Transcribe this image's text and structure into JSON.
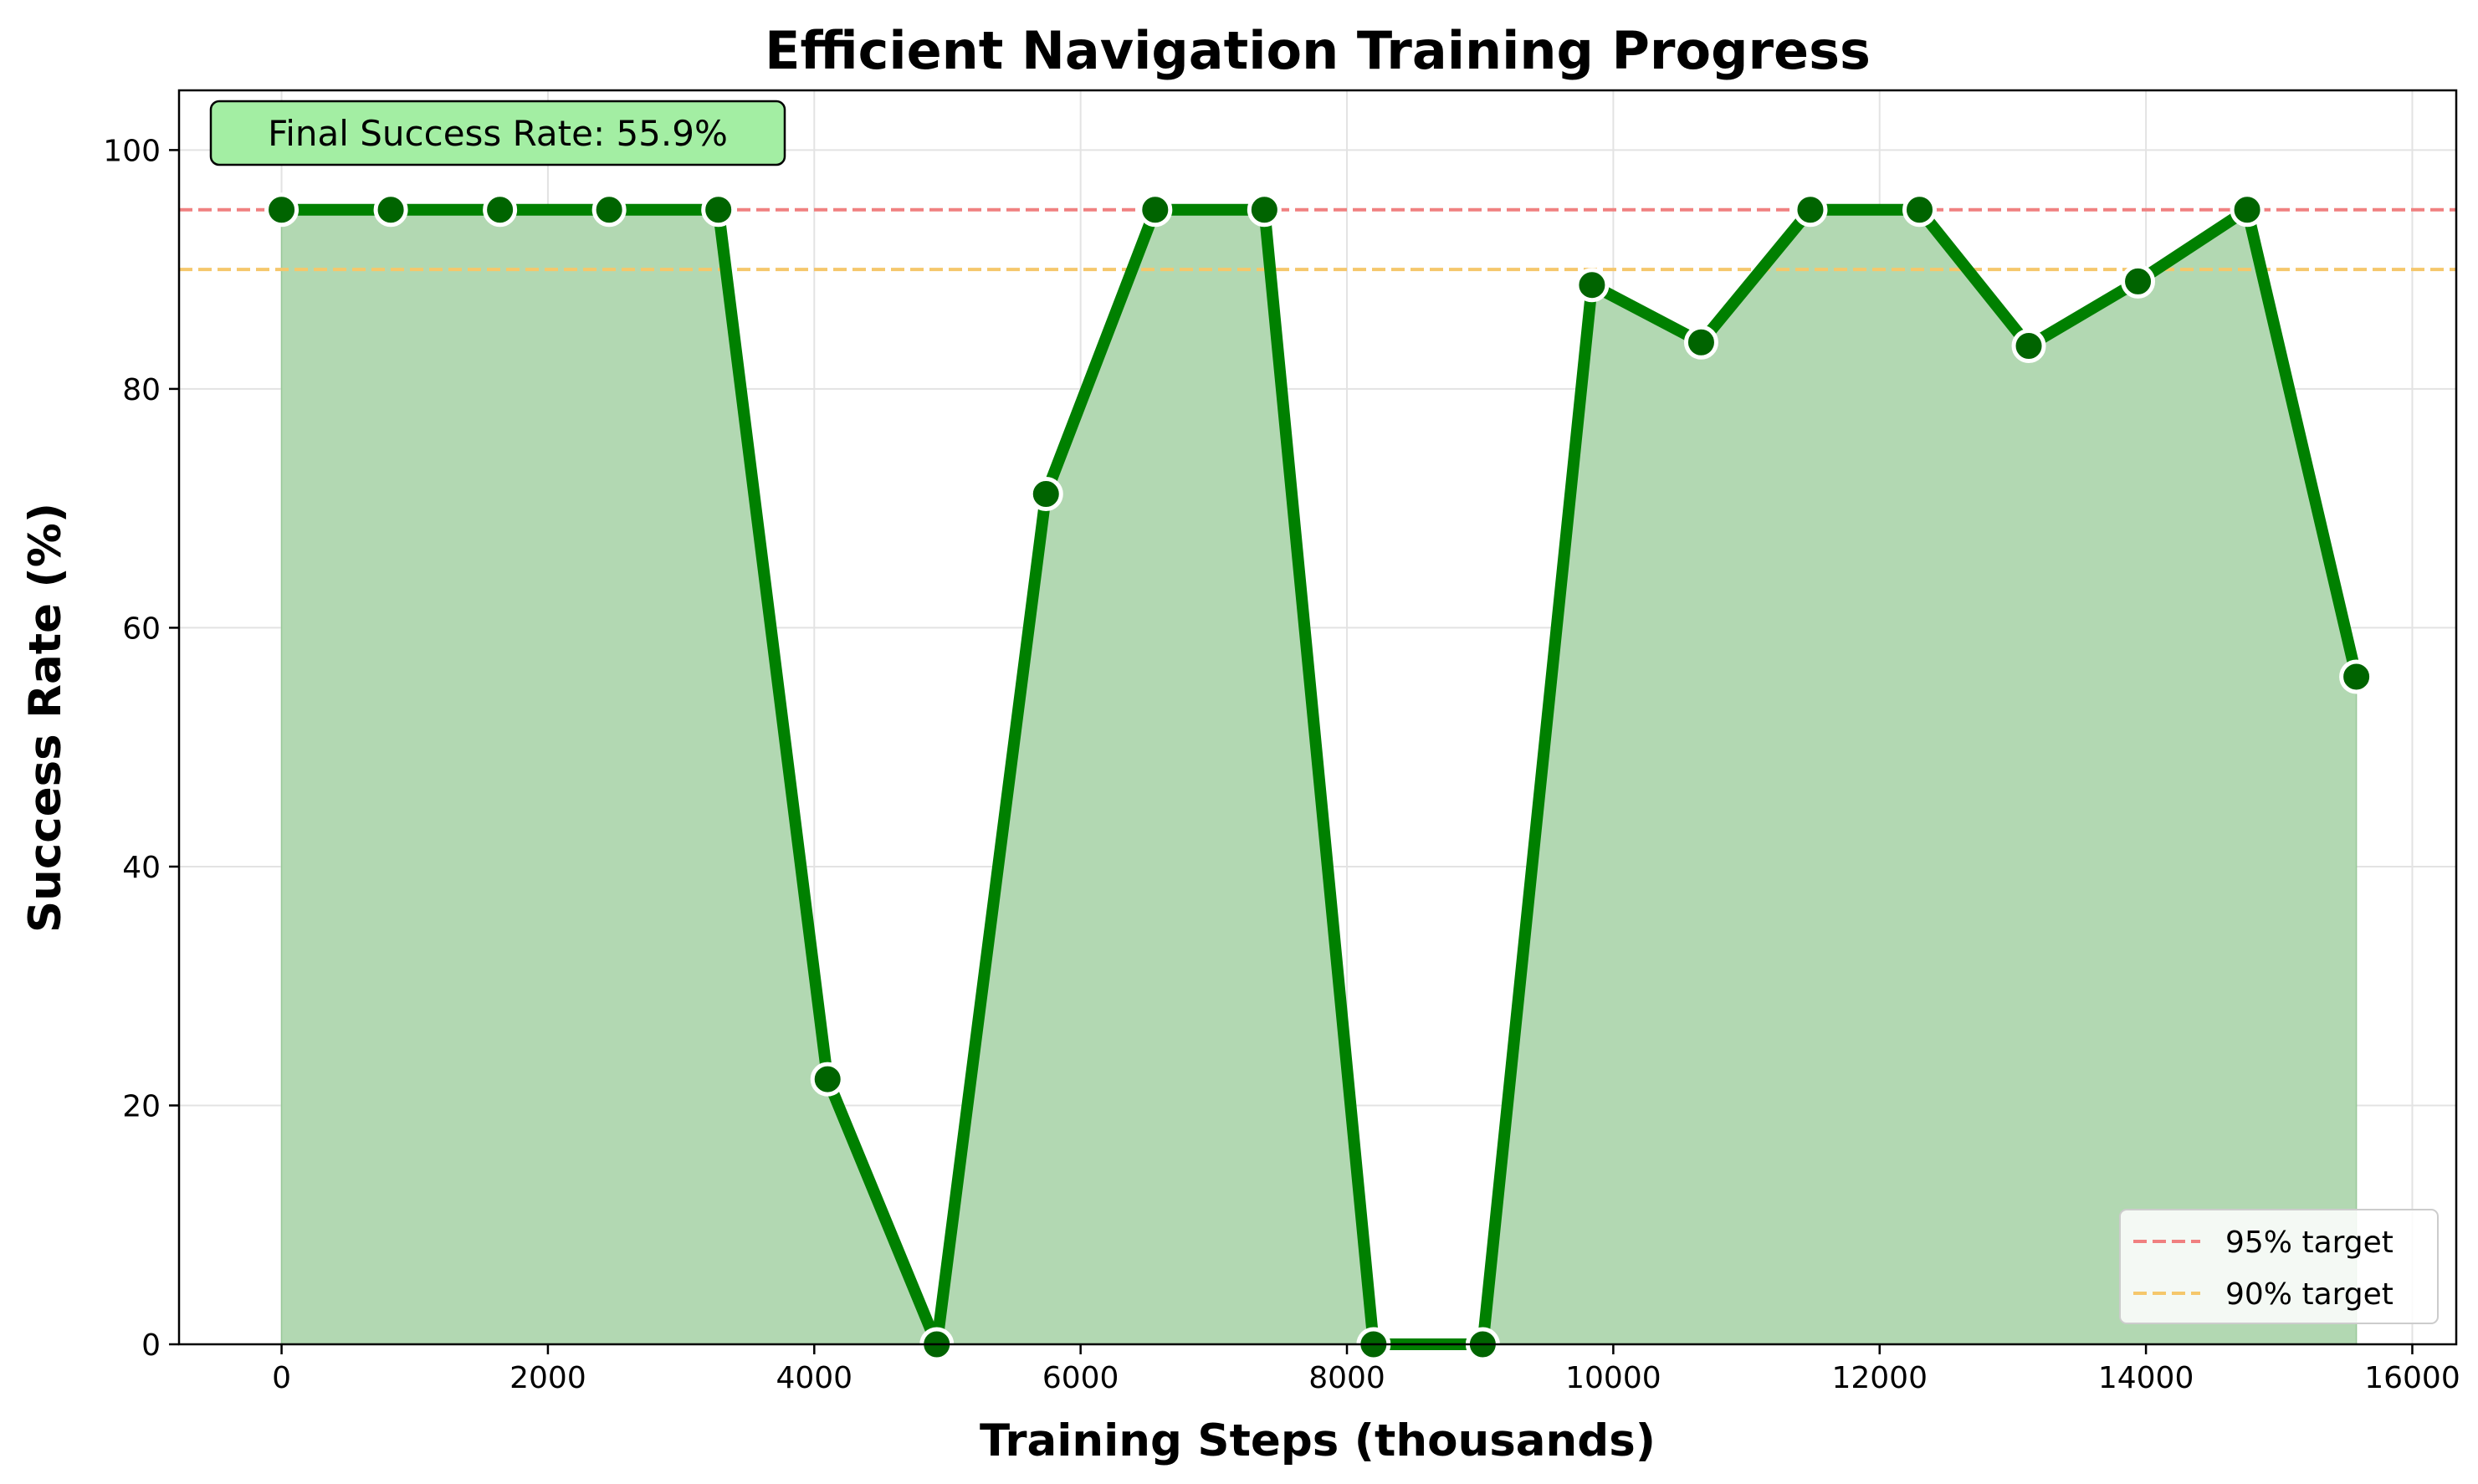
{
  "chart_data": {
    "type": "line",
    "title": "Efficient Navigation Training Progress",
    "xlabel": "Training Steps (thousands)",
    "ylabel": "Success Rate (%)",
    "xlim": [
      -770,
      16330
    ],
    "ylim": [
      0,
      105
    ],
    "xticks": [
      0,
      2000,
      4000,
      6000,
      8000,
      10000,
      12000,
      14000,
      16000
    ],
    "xtick_labels": [
      "0",
      "2000",
      "4000",
      "6000",
      "8000",
      "10000",
      "12000",
      "14000",
      "16000"
    ],
    "yticks": [
      0,
      20,
      40,
      60,
      80,
      100
    ],
    "ytick_labels": [
      "0",
      "20",
      "40",
      "60",
      "80",
      "100"
    ],
    "grid": true,
    "legend_position": "lower-right",
    "series": [
      {
        "x": [
          0,
          820,
          1640,
          2460,
          3280,
          4100,
          4920,
          5740,
          6560,
          7380,
          8200,
          9020,
          9840,
          10660,
          11480,
          12300,
          13120,
          13940,
          14760,
          15580
        ],
        "y": [
          95,
          95,
          95,
          95,
          95,
          22.2,
          0,
          71.2,
          95,
          95,
          0,
          0,
          88.7,
          83.9,
          95,
          95,
          83.6,
          89.0,
          95,
          55.9
        ],
        "color": "#008000",
        "marker_color": "#006400",
        "fill_color": "#b2d8b2"
      }
    ],
    "reference_lines": [
      {
        "y": 95,
        "label": "95% target",
        "color": "#f08080"
      },
      {
        "y": 90,
        "label": "90% target",
        "color": "#f5c76b"
      }
    ],
    "annotation": {
      "text": "Final Success Rate: 55.9%",
      "bg_color": "#a3eea3"
    }
  }
}
